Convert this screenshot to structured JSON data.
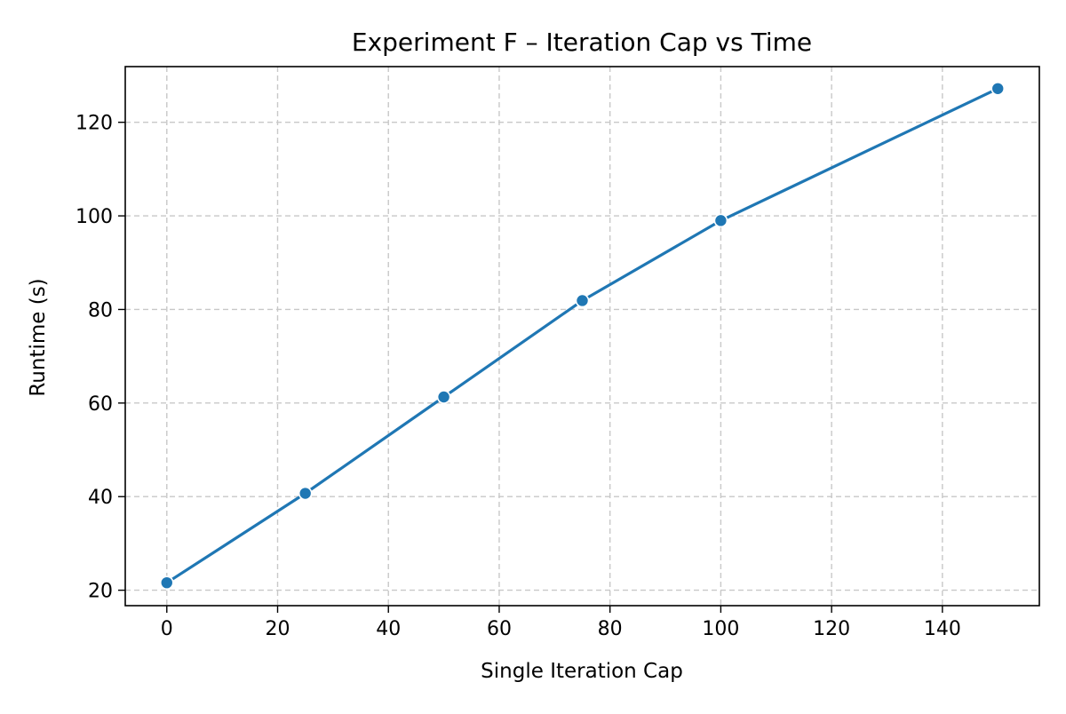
{
  "chart_data": {
    "type": "line",
    "title": "Experiment F – Iteration Cap vs Time",
    "xlabel": "Single Iteration Cap",
    "ylabel": "Runtime (s)",
    "xlim": [
      -7.5,
      157.5
    ],
    "ylim": [
      16.7,
      131.9
    ],
    "xticks": [
      0,
      20,
      40,
      60,
      80,
      100,
      120,
      140
    ],
    "yticks": [
      20,
      40,
      60,
      80,
      100,
      120
    ],
    "grid": true,
    "legend": "none",
    "series": [
      {
        "color": "#1f77b4",
        "marker": "circle",
        "points": [
          {
            "x": 0,
            "y": 21.6
          },
          {
            "x": 25,
            "y": 40.7
          },
          {
            "x": 50,
            "y": 61.3
          },
          {
            "x": 75,
            "y": 81.9
          },
          {
            "x": 100,
            "y": 99.0
          },
          {
            "x": 150,
            "y": 127.2
          }
        ]
      }
    ]
  }
}
